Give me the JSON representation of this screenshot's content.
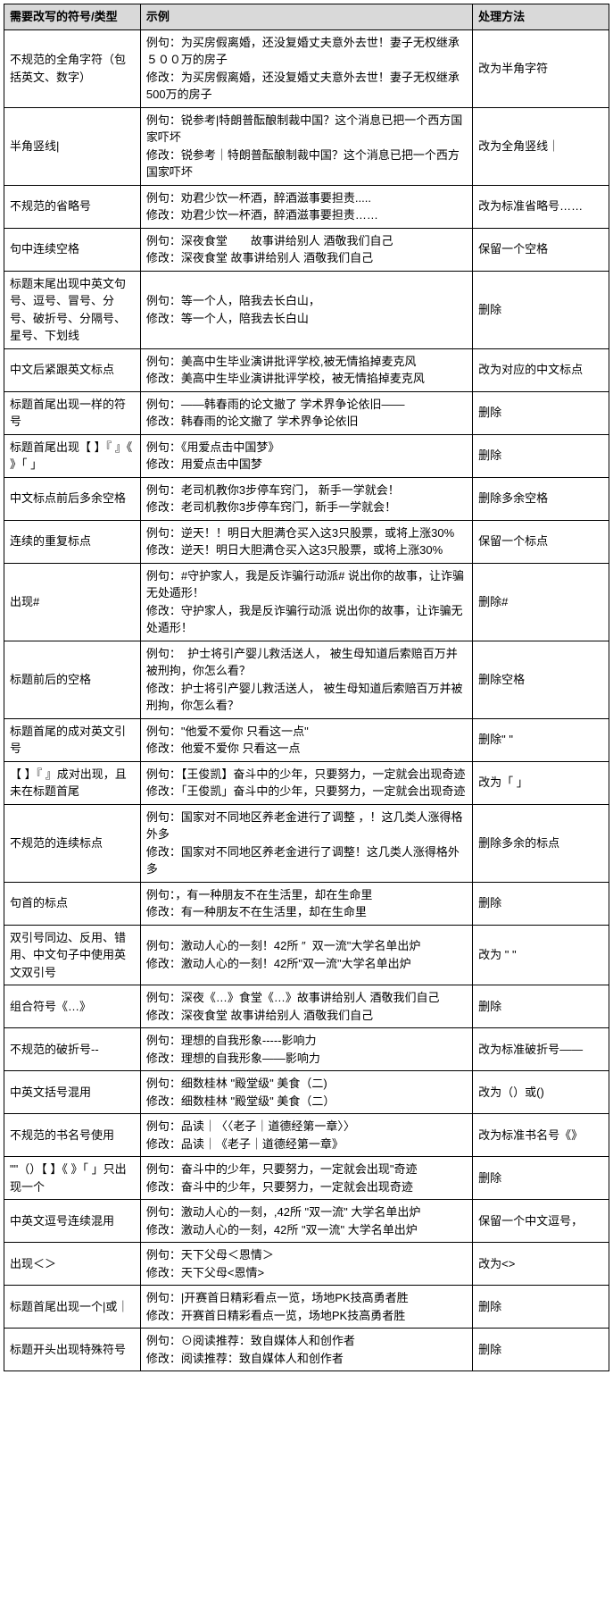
{
  "columns": [
    "需要改写的符号/类型",
    "示例",
    "处理方法"
  ],
  "rows": [
    {
      "type": "不规范的全角字符（包括英文、数字）",
      "example": "例句：为买房假离婚，还没复婚丈夫意外去世！妻子无权继承５００万的房子\n修改：为买房假离婚，还没复婚丈夫意外去世！妻子无权继承500万的房子",
      "method": "改为半角字符"
    },
    {
      "type": "半角竖线|",
      "example": "例句：锐参考|特朗普酝酿制裁中国？这个消息已把一个西方国家吓坏\n修改：锐参考｜特朗普酝酿制裁中国？这个消息已把一个西方国家吓坏",
      "method": "改为全角竖线｜"
    },
    {
      "type": "不规范的省略号",
      "example": "例句：劝君少饮一杯酒，醉酒滋事要担责.....\n修改：劝君少饮一杯酒，醉酒滋事要担责……",
      "method": "改为标准省略号……"
    },
    {
      "type": "句中连续空格",
      "example": "例句：深夜食堂　　故事讲给别人 酒敬我们自己\n修改：深夜食堂 故事讲给别人 酒敬我们自己",
      "method": "保留一个空格"
    },
    {
      "type": "标题末尾出现中英文句号、逗号、冒号、分号、破折号、分隔号、星号、下划线",
      "example": "例句：等一个人，陪我去长白山，\n修改：等一个人，陪我去长白山",
      "method": "删除"
    },
    {
      "type": "中文后紧跟英文标点",
      "example": "例句：美高中生毕业演讲批评学校,被无情掐掉麦克风\n修改：美高中生毕业演讲批评学校，被无情掐掉麦克风",
      "method": "改为对应的中文标点"
    },
    {
      "type": "标题首尾出现一样的符号",
      "example": "例句：——韩春雨的论文撤了 学术界争论依旧——\n修改：韩春雨的论文撤了 学术界争论依旧",
      "method": "删除"
    },
    {
      "type": "标题首尾出现【 】『 』《 》「 」",
      "example": "例句：《用爱点击中国梦》\n修改：用爱点击中国梦",
      "method": "删除"
    },
    {
      "type": "中文标点前后多余空格",
      "example": "例句：老司机教你3步停车窍门， 新手一学就会！\n修改：老司机教你3步停车窍门，新手一学就会！",
      "method": "删除多余空格"
    },
    {
      "type": "连续的重复标点",
      "example": "例句：逆天！！明日大胆满仓买入这3只股票，或将上涨30%\n修改：逆天！明日大胆满仓买入这3只股票，或将上涨30%",
      "method": "保留一个标点"
    },
    {
      "type": "出现#",
      "example": "例句：#守护家人，我是反诈骗行动派# 说出你的故事，让诈骗无处遁形！\n修改：守护家人，我是反诈骗行动派 说出你的故事，让诈骗无处遁形！",
      "method": "删除#"
    },
    {
      "type": "标题前后的空格",
      "example": "例句：  护士将引产婴儿救活送人， 被生母知道后索赔百万并被刑拘，你怎么看？\n修改：护士将引产婴儿救活送人， 被生母知道后索赔百万并被刑拘，你怎么看？",
      "method": "删除空格"
    },
    {
      "type": "标题首尾的成对英文引号",
      "example": "例句：\"他爱不爱你 只看这一点\"\n修改：他爱不爱你 只看这一点",
      "method": "删除\" \""
    },
    {
      "type": "【 】『 』成对出现，且未在标题首尾",
      "example": "例句：【王俊凯】奋斗中的少年，只要努力，一定就会出现奇迹\n修改：「王俊凯」奋斗中的少年，只要努力，一定就会出现奇迹",
      "method": "改为「 」"
    },
    {
      "type": "不规范的连续标点",
      "example": "例句：国家对不同地区养老金进行了调整 ，！这几类人涨得格外多\n修改：国家对不同地区养老金进行了调整！这几类人涨得格外多",
      "method": "删除多余的标点"
    },
    {
      "type": "句首的标点",
      "example": "例句：，有一种朋友不在生活里，却在生命里\n修改：有一种朋友不在生活里，却在生命里",
      "method": "删除"
    },
    {
      "type": "双引号同边、反用、错用、中文句子中使用英文双引号",
      "example": "例句：激动人心的一刻！42所 ″  双一流\"大学名单出炉\n修改：激动人心的一刻！42所\"双一流\"大学名单出炉",
      "method": "改为 \" \""
    },
    {
      "type": "组合符号《…》",
      "example": "例句：深夜《…》食堂《…》故事讲给别人 酒敬我们自己\n修改：深夜食堂 故事讲给别人 酒敬我们自己",
      "method": "删除"
    },
    {
      "type": "不规范的破折号--",
      "example": "例句：理想的自我形象-----影响力\n修改：理想的自我形象——影响力",
      "method": "改为标准破折号——"
    },
    {
      "type": "中英文括号混用",
      "example": "例句：细数桂林 \"殿堂级\" 美食（二)\n修改：细数桂林 \"殿堂级\" 美食（二）",
      "method": "改为（）或()"
    },
    {
      "type": "不规范的书名号使用",
      "example": "例句：品读｜〈〈老子｜道德经第一章〉〉\n修改：品读｜《老子｜道德经第一章》",
      "method": "改为标准书名号《》"
    },
    {
      "type": "\"\"（）【 】《 》「 」只出现一个",
      "example": "例句：奋斗中的少年，只要努力，一定就会出现\"奇迹\n修改：奋斗中的少年，只要努力，一定就会出现奇迹",
      "method": "删除"
    },
    {
      "type": "中英文逗号连续混用",
      "example": "例句：激动人心的一刻，,42所 \"双一流\" 大学名单出炉\n修改：激动人心的一刻，42所 \"双一流\" 大学名单出炉",
      "method": "保留一个中文逗号，"
    },
    {
      "type": "出现＜＞",
      "example": "例句：天下父母＜恩情＞\n修改：天下父母<恩情>",
      "method": "改为<>"
    },
    {
      "type": "标题首尾出现一个|或｜",
      "example": "例句：|开赛首日精彩看点一览，场地PK技高勇者胜\n修改：开赛首日精彩看点一览，场地PK技高勇者胜",
      "method": "删除"
    },
    {
      "type": "标题开头出现特殊符号",
      "example": "例句：⊙阅读推荐：致自媒体人和创作者\n修改：阅读推荐：致自媒体人和创作者",
      "method": "删除"
    }
  ]
}
